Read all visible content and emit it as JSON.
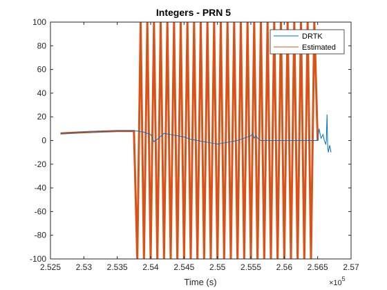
{
  "chart_data": {
    "type": "line",
    "title": "Integers - PRN 5",
    "xlabel": "Time (s)",
    "ylabel": "",
    "x_exponent_label": "×10",
    "x_exponent_power": "5",
    "xlim": [
      2.525,
      2.57
    ],
    "ylim": [
      -100,
      100
    ],
    "x_tick_values": [
      2.525,
      2.53,
      2.535,
      2.54,
      2.545,
      2.55,
      2.555,
      2.56,
      2.565,
      2.57
    ],
    "x_tick_labels": [
      "2.525",
      "2.53",
      "2.535",
      "2.54",
      "2.545",
      "2.55",
      "2.555",
      "2.56",
      "2.565",
      "2.57"
    ],
    "y_tick_values": [
      -100,
      -80,
      -60,
      -40,
      -20,
      0,
      20,
      40,
      60,
      80,
      100
    ],
    "y_tick_labels": [
      "-100",
      "-80",
      "-60",
      "-40",
      "-20",
      "0",
      "20",
      "40",
      "60",
      "80",
      "100"
    ],
    "grid": false,
    "legend_position": "top-right",
    "series": [
      {
        "name": "DRTK",
        "color": "#0072BD",
        "x": [
          2.5265,
          2.53,
          2.535,
          2.538,
          2.539,
          2.54,
          2.5402,
          2.5405,
          2.541,
          2.542,
          2.543,
          2.544,
          2.545,
          2.546,
          2.547,
          2.548,
          2.549,
          2.55,
          2.551,
          2.552,
          2.553,
          2.554,
          2.555,
          2.5553,
          2.5555,
          2.5558,
          2.556,
          2.5565,
          2.565,
          2.5652,
          2.5655,
          2.5658,
          2.566,
          2.5662,
          2.5663,
          2.5664,
          2.5665,
          2.5666,
          2.5668,
          2.567
        ],
        "y": [
          6,
          7,
          8,
          8,
          7,
          5,
          3,
          -1,
          1,
          6,
          5,
          4,
          3,
          1,
          0,
          -1,
          -2,
          -3,
          -2,
          -1,
          0,
          2,
          4,
          6,
          2,
          4,
          2,
          0,
          0,
          10,
          2,
          5,
          0,
          -3,
          0,
          22,
          -5,
          -10,
          -4,
          -10
        ]
      },
      {
        "name": "Estimated",
        "color": "#D95319",
        "x": [
          2.5265,
          2.53,
          2.535,
          2.5375,
          2.538,
          2.5385,
          2.539,
          2.5395,
          2.54,
          2.5405,
          2.541,
          2.5415,
          2.542,
          2.5425,
          2.543,
          2.5435,
          2.544,
          2.5445,
          2.545,
          2.5455,
          2.546,
          2.5465,
          2.547,
          2.5475,
          2.548,
          2.5485,
          2.549,
          2.5495,
          2.55,
          2.5505,
          2.551,
          2.5515,
          2.552,
          2.5525,
          2.553,
          2.5535,
          2.554,
          2.5545,
          2.555,
          2.5555,
          2.556,
          2.5565,
          2.557,
          2.5575,
          2.558,
          2.5585,
          2.559,
          2.5595,
          2.56,
          2.5605,
          2.561,
          2.5615,
          2.562,
          2.5625,
          2.563,
          2.5635,
          2.564,
          2.5645,
          2.565
        ],
        "y": [
          6,
          7,
          8,
          8,
          -100,
          100,
          -100,
          100,
          -100,
          100,
          -100,
          100,
          -100,
          100,
          -100,
          100,
          -100,
          100,
          -100,
          100,
          -100,
          100,
          -100,
          100,
          -100,
          100,
          -100,
          100,
          -100,
          100,
          -100,
          100,
          -100,
          100,
          -100,
          100,
          -100,
          100,
          -100,
          100,
          -100,
          100,
          -100,
          100,
          -100,
          100,
          -100,
          100,
          -100,
          100,
          -100,
          100,
          -100,
          100,
          -100,
          100,
          -100,
          100,
          0
        ]
      }
    ]
  }
}
